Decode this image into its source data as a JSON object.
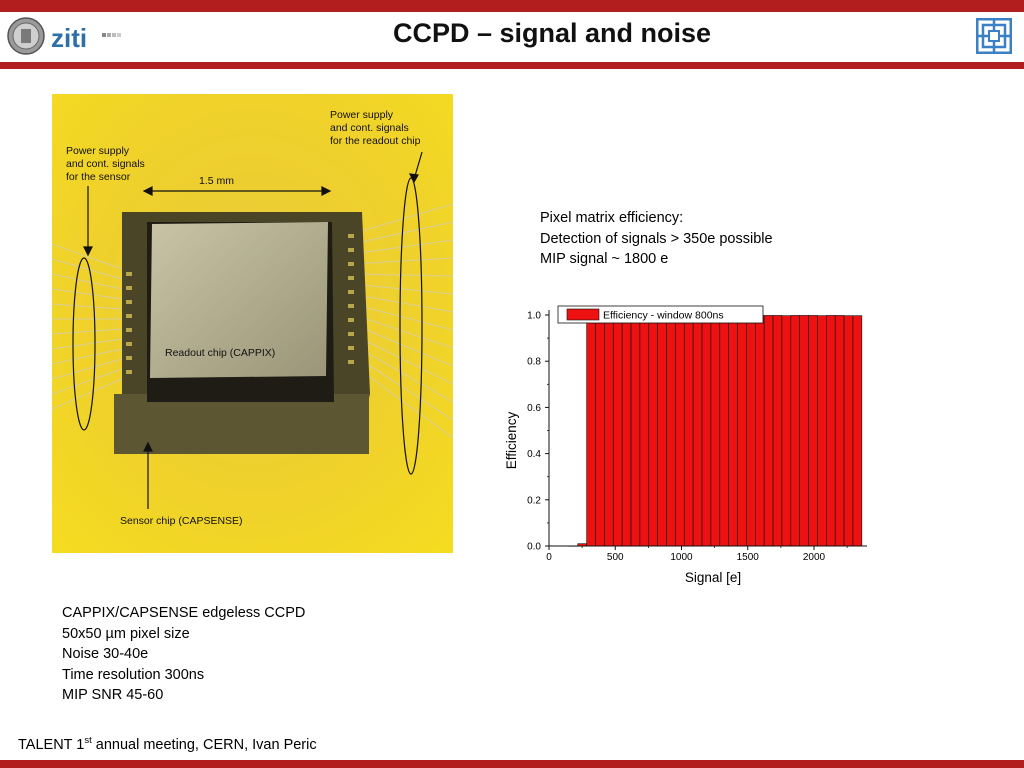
{
  "header": {
    "title": "CCPD – signal and noise",
    "accent_color": "#b21d1d",
    "logo_left_text": "ziti",
    "logo_right": "uni-logo-icon"
  },
  "photo": {
    "labels": {
      "power_sensor": [
        "Power supply",
        "and cont. signals",
        "for the sensor"
      ],
      "power_readout": [
        "Power supply",
        "and cont. signals",
        "for the readout chip"
      ],
      "scale": "1.5 mm",
      "readout_chip": "Readout chip (CAPPIX)",
      "sensor_chip": "Sensor chip (CAPSENSE)"
    }
  },
  "info": {
    "lines": [
      "Pixel matrix efficiency:",
      "Detection of signals > 350e possible",
      "MIP signal ~ 1800 e"
    ]
  },
  "chart_data": {
    "type": "bar",
    "legend": "Efficiency - window 800ns",
    "legend_position": "top",
    "xlabel": "Signal [e]",
    "ylabel": "Efficiency",
    "xlim": [
      0,
      2400
    ],
    "ylim": [
      0,
      1.0
    ],
    "xticks": [
      "0",
      "500",
      "1000",
      "1500",
      "2000"
    ],
    "yticks": [
      "0.0",
      "0.2",
      "0.4",
      "0.6",
      "0.8",
      "1.0"
    ],
    "bin_width": 67,
    "bin_starts": [
      150,
      217,
      284,
      351,
      418,
      485,
      552,
      619,
      686,
      753,
      820,
      887,
      954,
      1021,
      1088,
      1155,
      1222,
      1289,
      1356,
      1423,
      1490,
      1557,
      1624,
      1691,
      1758,
      1825,
      1892,
      1959,
      2026,
      2093,
      2160,
      2227,
      2294
    ],
    "values": [
      0.0,
      0.01,
      0.996,
      0.997,
      0.998,
      0.998,
      0.997,
      0.998,
      0.998,
      0.998,
      0.997,
      0.998,
      0.998,
      0.998,
      0.998,
      0.997,
      0.998,
      0.998,
      0.998,
      0.997,
      0.998,
      0.998,
      0.998,
      0.998,
      0.997,
      0.998,
      0.998,
      0.998,
      0.997,
      0.998,
      0.998,
      0.997,
      0.997
    ],
    "bar_color": "#ee1111"
  },
  "specs": {
    "lines": [
      "CAPPIX/CAPSENSE edgeless CCPD",
      "50x50 µm pixel size",
      "Noise 30-40e",
      "Time resolution 300ns",
      "MIP SNR 45-60"
    ]
  },
  "footer": {
    "prefix": "TALENT 1",
    "sup": "st",
    "suffix": " annual meeting, CERN, Ivan Peric"
  }
}
